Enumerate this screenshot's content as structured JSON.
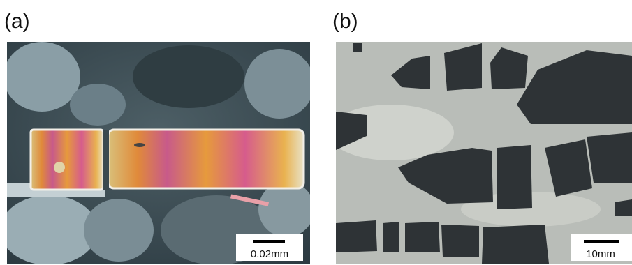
{
  "panels": [
    {
      "label": "(a)",
      "scale_bar": "0.02mm"
    },
    {
      "label": "(b)",
      "scale_bar": "10mm"
    }
  ]
}
